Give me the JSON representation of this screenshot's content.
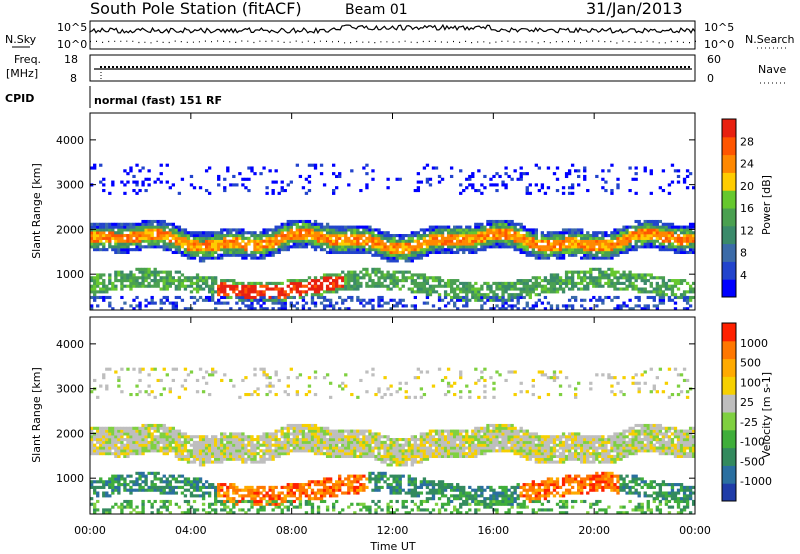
{
  "header": {
    "station": "South Pole Station (fitACF)",
    "beam": "Beam 01",
    "date": "31/Jan/2013"
  },
  "strips": {
    "nsky_label": "N.Sky",
    "nsearch_label": "N.Search",
    "noise_ticks_left": [
      "10^5",
      "10^0"
    ],
    "noise_ticks_right": [
      "10^5",
      "10^0"
    ],
    "freq_label_1": "Freq.",
    "freq_label_2": "[MHz]",
    "freq_ticks": [
      "18",
      "8"
    ],
    "nave_label": "Nave",
    "nave_ticks": [
      "60",
      "0"
    ],
    "cpid_label": "CPID",
    "cpid_value": "normal (fast) 151 RF"
  },
  "chart_data": [
    {
      "type": "heatmap",
      "name": "power",
      "ylabel": "Slant Range [km]",
      "ylim": [
        200,
        4600
      ],
      "yticks": [
        1000,
        2000,
        3000,
        4000
      ],
      "colorbar_label": "Power [dB]",
      "colorbar_ticks": [
        "28",
        "24",
        "20",
        "16",
        "12",
        "8",
        "4"
      ],
      "colors": [
        "#0000ff",
        "#2244cc",
        "#3b6ba8",
        "#3a8a6a",
        "#4aa050",
        "#66c82e",
        "#ffcc00",
        "#ff8800",
        "#ff5500",
        "#e82010"
      ]
    },
    {
      "type": "heatmap",
      "name": "velocity",
      "ylabel": "Slant Range [km]",
      "ylim": [
        200,
        4600
      ],
      "yticks": [
        1000,
        2000,
        3000,
        4000
      ],
      "xlabel": "Time UT",
      "xticks": [
        "00:00",
        "04:00",
        "08:00",
        "12:00",
        "16:00",
        "20:00",
        "00:00"
      ],
      "colorbar_label": "Velocity [m s-1]",
      "colorbar_ticks": [
        "1000",
        "500",
        "100",
        "25",
        "-25",
        "-100",
        "-500",
        "-1000"
      ],
      "colors": [
        "#1f3ca8",
        "#2a6fa0",
        "#338a5e",
        "#3fae3a",
        "#7fd040",
        "#bebebe",
        "#f6d000",
        "#ffaa00",
        "#ff7700",
        "#ff2000"
      ]
    }
  ]
}
